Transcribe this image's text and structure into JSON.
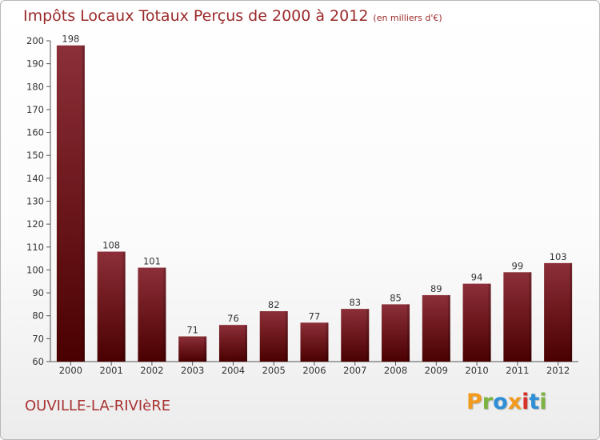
{
  "header": {
    "title": "Impôts Locaux Totaux Perçus de 2000 à 2012",
    "unit": "(en milliers d'€)"
  },
  "footer": {
    "commune": "OUVILLE-LA-RIVIèRE",
    "logo": "Proxiti",
    "logo_colors": [
      "#f29a1e",
      "#7cb342",
      "#2e8fd6",
      "#f29a1e",
      "#d8312a",
      "#2e8fd6",
      "#7cb342"
    ]
  },
  "colors": {
    "bar_top": "#8c2f38",
    "bar_bottom": "#4a0000",
    "axis": "#555555",
    "label": "#333333"
  },
  "chart_data": {
    "type": "bar",
    "title": "Impôts Locaux Totaux Perçus de 2000 à 2012",
    "xlabel": "",
    "ylabel": "",
    "ylim": [
      60,
      200
    ],
    "yticks": [
      60,
      70,
      80,
      90,
      100,
      110,
      120,
      130,
      140,
      150,
      160,
      170,
      180,
      190,
      200
    ],
    "categories": [
      "2000",
      "2001",
      "2002",
      "2003",
      "2004",
      "2005",
      "2006",
      "2007",
      "2008",
      "2009",
      "2010",
      "2011",
      "2012"
    ],
    "values": [
      198,
      108,
      101,
      71,
      76,
      82,
      77,
      83,
      85,
      89,
      94,
      99,
      103
    ],
    "grid": false,
    "legend": "none"
  }
}
